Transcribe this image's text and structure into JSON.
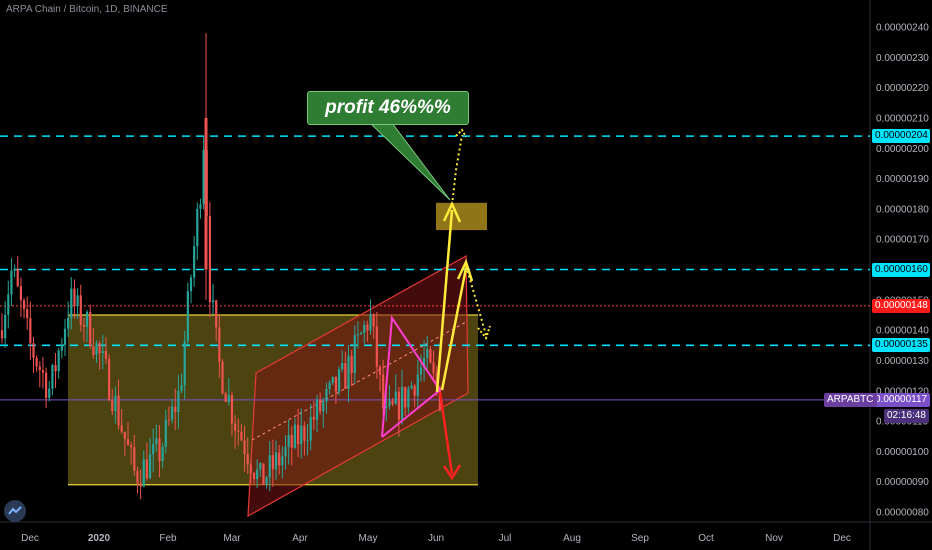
{
  "header": {
    "symbol_title": "ARPA Chain / Bitcoin, 1D, BINANCE"
  },
  "annotation": {
    "profit_text": "profit 46%%%"
  },
  "price_axis": {
    "ticks": [
      "0.00000240",
      "0.00000230",
      "0.00000220",
      "0.00000210",
      "0.00000200",
      "0.00000190",
      "0.00000180",
      "0.00000170",
      "0.00000150",
      "0.00000140",
      "0.00000130",
      "0.00000120",
      "0.00000110",
      "0.00000100",
      "0.00000090",
      "0.00000080"
    ],
    "tags": [
      {
        "value": "0.00000204",
        "bg": "#00e5ff",
        "fg": "#000000"
      },
      {
        "value": "0.00000160",
        "bg": "#00e5ff",
        "fg": "#000000"
      },
      {
        "value": "0.00000148",
        "bg": "#ff1a1a",
        "fg": "#ffffff"
      },
      {
        "value": "0.00000135",
        "bg": "#00e5ff",
        "fg": "#000000"
      },
      {
        "value": "0.00000117",
        "bg": "#7b4fc7",
        "fg": "#ffffff"
      }
    ],
    "symbol_tag": "ARPABTC",
    "countdown": "02:16:48"
  },
  "time_axis": {
    "labels": [
      "Dec",
      "2020",
      "Feb",
      "Mar",
      "Apr",
      "May",
      "Jun",
      "Jul",
      "Aug",
      "Sep",
      "Oct",
      "Nov",
      "Dec"
    ]
  },
  "colors": {
    "up": "#26a69a",
    "down": "#ef5350",
    "level_line": "#00e5ff",
    "zone_fill": "#8a7a1e",
    "channel": "#e53935",
    "arrow": "#ffeb3b",
    "magenta": "#ff3dd0"
  },
  "chart_data": {
    "type": "candlestick",
    "title": "ARPA Chain / Bitcoin, 1D, BINANCE",
    "y_range": [
      7.5e-07,
      2.46e-06
    ],
    "levels": [
      2.04e-06,
      1.6e-06,
      1.35e-06
    ],
    "resistance_line": 1.48e-06,
    "current_price": 1.17e-06,
    "zone_top": 1.45e-06,
    "zone_bottom": 8.9e-07,
    "target_box": [
      1.73e-06,
      1.82e-06
    ],
    "profit_label": "profit 46%%%"
  }
}
